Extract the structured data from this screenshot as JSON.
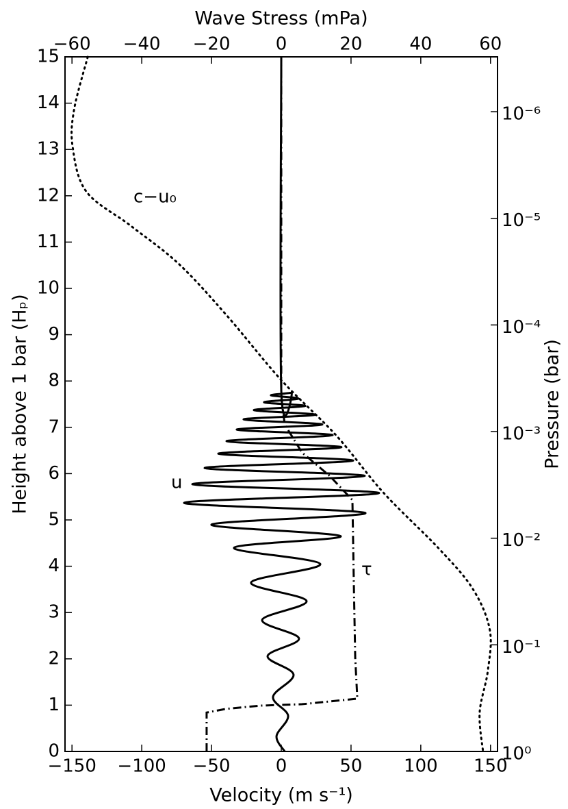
{
  "chart_data": {
    "type": "line",
    "xlabel": "Velocity (m s⁻¹)",
    "x2label": "Wave Stress (mPa)",
    "ylabel": "Height above 1 bar (Hₚ)",
    "y2label": "Pressure (bar)",
    "xlim": [
      -155,
      155
    ],
    "xticks": [
      {
        "value": -150,
        "label": "−150"
      },
      {
        "value": -100,
        "label": "−100"
      },
      {
        "value": -50,
        "label": "−50"
      },
      0,
      50,
      100,
      150
    ],
    "x2lim": [
      -62,
      62
    ],
    "x2ticks": [
      {
        "value": -60,
        "label": "−60"
      },
      {
        "value": -40,
        "label": "−40"
      },
      {
        "value": -20,
        "label": "−20"
      },
      0,
      20,
      40,
      60
    ],
    "ylim": [
      0,
      15
    ],
    "yticks": [
      0,
      1,
      2,
      3,
      4,
      5,
      6,
      7,
      8,
      9,
      10,
      11,
      12,
      13,
      14,
      15
    ],
    "y2lim": [
      1,
      3.06e-07
    ],
    "y2scale": "log",
    "y2ticks": [
      {
        "value": 1,
        "label": "10⁰"
      },
      {
        "value": 0.1,
        "label": "10⁻¹"
      },
      {
        "value": 0.01,
        "label": "10⁻²"
      },
      {
        "value": 0.001,
        "label": "10⁻³"
      },
      {
        "value": 0.0001,
        "label": "10⁻⁴"
      },
      {
        "value": 1e-05,
        "label": "10⁻⁵"
      },
      {
        "value": 1e-06,
        "label": "10⁻⁶"
      }
    ],
    "series": [
      {
        "name": "c−u₀",
        "color": "#000000",
        "style": "dotted",
        "x": [
          -138.7,
          -148.5,
          -149.5,
          -139.7,
          -107.8,
          -73.5,
          -39.2,
          0,
          39.2,
          73.5,
          112.7,
          137.3,
          149.5,
          148,
          142.2,
          144.6
        ],
        "y": [
          15,
          13.86,
          13.05,
          12.09,
          11.35,
          10.53,
          9.42,
          8.02,
          6.83,
          5.58,
          4.39,
          3.51,
          2.62,
          1.73,
          0.84,
          0
        ]
      },
      {
        "name": "u",
        "color": "#000000",
        "style": "solid",
        "x": [
          2.5,
          -3.4,
          4.9,
          -5.9,
          8.8,
          -9.8,
          12.7,
          -13.7,
          18.1,
          -21.6,
          27.9,
          -33.8,
          42.6,
          -50,
          60.3,
          -69.6,
          70.1,
          -63.7,
          59.8,
          -54.9,
          51.5,
          -45.1,
          43.1,
          -39.2,
          36.8,
          -31.9,
          29.4,
          -27,
          24.5,
          -19.6,
          17.2,
          -12.3,
          12.3,
          -7.4,
          7.4,
          0,
          0
        ],
        "y": [
          0,
          0.33,
          0.77,
          1.18,
          1.66,
          2.06,
          2.44,
          2.84,
          3.25,
          3.65,
          4.05,
          4.4,
          4.65,
          4.9,
          5.15,
          5.37,
          5.58,
          5.77,
          5.95,
          6.12,
          6.28,
          6.43,
          6.57,
          6.7,
          6.83,
          6.95,
          7.06,
          7.17,
          7.27,
          7.37,
          7.46,
          7.54,
          7.62,
          7.69,
          7.75,
          7.8,
          15
        ]
      },
      {
        "name": "τ",
        "color": "#000000",
        "style": "dashdot",
        "axis": "x2",
        "x": [
          -21.4,
          -21.4,
          -15.8,
          -5.9,
          5.9,
          21.8,
          21.2,
          20.8,
          20.4,
          13.9,
          5.9,
          1,
          0,
          0
        ],
        "y": [
          0,
          0.84,
          0.92,
          0.99,
          1.02,
          1.14,
          2.03,
          3.65,
          5.43,
          5.95,
          6.46,
          7.06,
          7.65,
          15
        ]
      }
    ]
  }
}
